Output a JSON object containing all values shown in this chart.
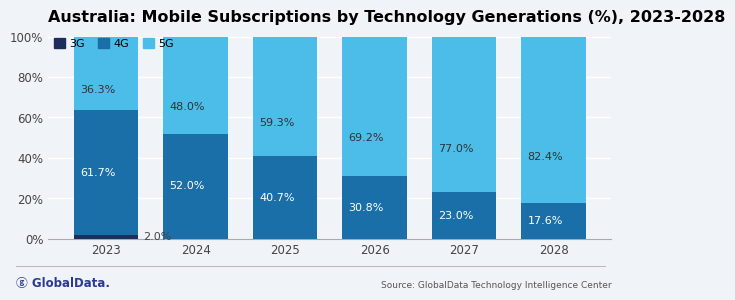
{
  "title": "Australia: Mobile Subscriptions by Technology Generations (%), 2023-2028",
  "years": [
    "2023",
    "2024",
    "2025",
    "2026",
    "2027",
    "2028"
  ],
  "3g": [
    2.0,
    0.0,
    0.0,
    0.0,
    0.0,
    0.0
  ],
  "4g": [
    61.7,
    52.0,
    40.7,
    30.8,
    23.0,
    17.6
  ],
  "5g": [
    36.3,
    48.0,
    59.3,
    69.2,
    77.0,
    82.4
  ],
  "color_3g": "#1e2d5e",
  "color_4g": "#1a6fa8",
  "color_5g": "#4bbde8",
  "color_bg": "#f0f4f8",
  "source_text": "Source: GlobalData Technology Intelligence Center",
  "title_fontsize": 11.5,
  "tick_fontsize": 8.5,
  "label_fontsize": 8.0,
  "bar_width": 0.72,
  "ylim": [
    0,
    100
  ],
  "globaldata_color": "#2b3990"
}
